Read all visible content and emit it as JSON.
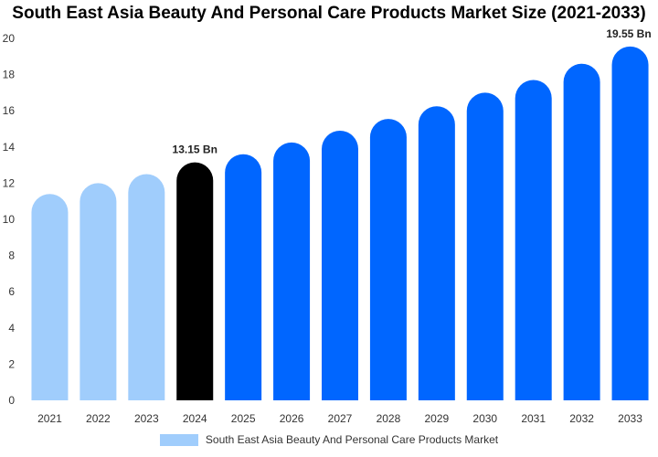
{
  "chart_data": {
    "type": "bar",
    "title": "South East Asia Beauty And Personal Care Products Market Size (2021-2033)",
    "xlabel": "",
    "ylabel": "",
    "ylim": [
      0,
      20
    ],
    "yticks": [
      0,
      2,
      4,
      6,
      8,
      10,
      12,
      14,
      16,
      18,
      20
    ],
    "grid": false,
    "legend_position": "bottom-center",
    "categories": [
      "2021",
      "2022",
      "2023",
      "2024",
      "2025",
      "2026",
      "2027",
      "2028",
      "2029",
      "2030",
      "2031",
      "2032",
      "2033"
    ],
    "series": [
      {
        "name": "South East Asia Beauty And Personal Care Products Market",
        "values": [
          11.4,
          12.0,
          12.5,
          13.15,
          13.6,
          14.25,
          14.9,
          15.55,
          16.25,
          17.0,
          17.7,
          18.6,
          19.55
        ]
      }
    ],
    "bar_colors": [
      "#a0cdfc",
      "#a0cdfc",
      "#a0cdfc",
      "#000000",
      "#0066ff",
      "#0066ff",
      "#0066ff",
      "#0066ff",
      "#0066ff",
      "#0066ff",
      "#0066ff",
      "#0066ff",
      "#0066ff"
    ],
    "data_labels": [
      {
        "category": "2024",
        "text": "13.15 Bn"
      },
      {
        "category": "2033",
        "text": "19.55 Bn"
      }
    ],
    "legend_color": "#a0cdfc"
  }
}
